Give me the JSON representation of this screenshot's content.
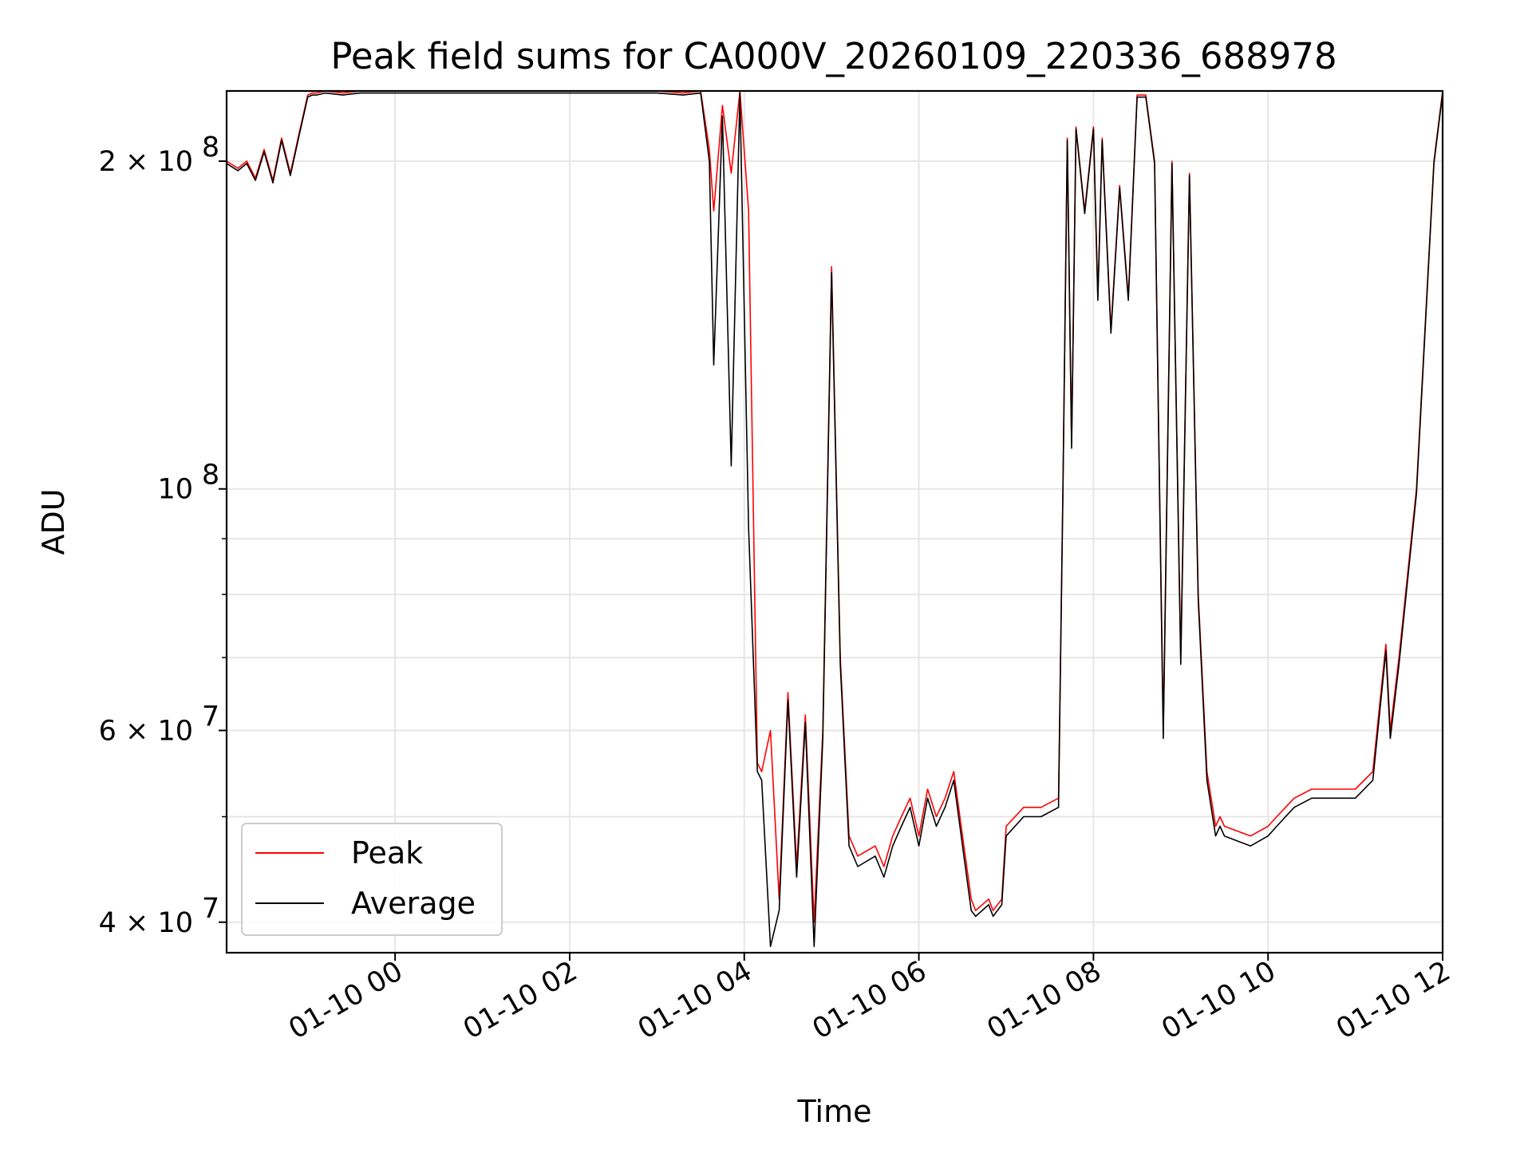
{
  "chart_data": {
    "type": "line",
    "title": "Peak field sums for CA000V_20260109_220336_688978",
    "xlabel": "Time",
    "ylabel": "ADU",
    "yscale": "log",
    "xlim_hours": [
      -1.93,
      12.0
    ],
    "ylim": [
      37500000,
      232000000
    ],
    "x_units": "hours since 2026-01-10 00:00",
    "x_ticks": [
      {
        "value": 0,
        "label": "01-10 00"
      },
      {
        "value": 2,
        "label": "01-10 02"
      },
      {
        "value": 4,
        "label": "01-10 04"
      },
      {
        "value": 6,
        "label": "01-10 06"
      },
      {
        "value": 8,
        "label": "01-10 08"
      },
      {
        "value": 10,
        "label": "01-10 10"
      },
      {
        "value": 12,
        "label": "01-10 12"
      }
    ],
    "y_ticks": [
      {
        "value": 200000000,
        "base": "2 × 10",
        "exp": "8"
      },
      {
        "value": 100000000,
        "base": "10",
        "exp": "8"
      },
      {
        "value": 60000000,
        "base": "6 × 10",
        "exp": "7"
      },
      {
        "value": 40000000,
        "base": "4 × 10",
        "exp": "7"
      }
    ],
    "y_minor_ticks": [
      50000000,
      70000000,
      80000000,
      90000000
    ],
    "legend": {
      "position": "lower-left",
      "entries": [
        {
          "label": "Peak",
          "color": "#ff0000"
        },
        {
          "label": "Average",
          "color": "#000000"
        }
      ]
    },
    "series": [
      {
        "name": "Peak",
        "color": "#ff0000",
        "x": [
          -1.93,
          -1.8,
          -1.7,
          -1.6,
          -1.5,
          -1.4,
          -1.3,
          -1.2,
          -1.1,
          -1.0,
          -0.95,
          -0.9,
          -0.8,
          -0.6,
          -0.4,
          0,
          1,
          2,
          3,
          3.3,
          3.5,
          3.6,
          3.65,
          3.75,
          3.85,
          3.95,
          4.05,
          4.15,
          4.2,
          4.3,
          4.4,
          4.5,
          4.6,
          4.7,
          4.8,
          4.9,
          5.0,
          5.1,
          5.2,
          5.3,
          5.5,
          5.6,
          5.7,
          5.8,
          5.9,
          6.0,
          6.1,
          6.2,
          6.3,
          6.4,
          6.5,
          6.6,
          6.65,
          6.8,
          6.85,
          6.95,
          7.0,
          7.2,
          7.4,
          7.6,
          7.65,
          7.7,
          7.75,
          7.8,
          7.9,
          8.0,
          8.05,
          8.1,
          8.2,
          8.3,
          8.4,
          8.5,
          8.6,
          8.7,
          8.8,
          8.9,
          9.0,
          9.1,
          9.2,
          9.3,
          9.4,
          9.45,
          9.5,
          9.8,
          10.0,
          10.1,
          10.3,
          10.5,
          10.8,
          11.0,
          11.2,
          11.35,
          11.4,
          11.5,
          11.7,
          11.9,
          12.0
        ],
        "y": [
          200000000,
          197000000,
          200000000,
          193000000,
          205000000,
          192000000,
          210000000,
          195000000,
          212000000,
          230000000,
          231000000,
          231000000,
          232000000,
          231000000,
          232000000,
          232000000,
          232000000,
          232000000,
          232000000,
          231000000,
          232000000,
          205000000,
          180000000,
          225000000,
          195000000,
          232000000,
          180000000,
          56000000,
          55000000,
          60000000,
          42000000,
          65000000,
          45000000,
          62000000,
          40000000,
          60000000,
          160000000,
          70000000,
          48000000,
          46000000,
          47000000,
          45000000,
          48000000,
          50000000,
          52000000,
          48000000,
          53000000,
          50000000,
          52000000,
          55000000,
          48000000,
          42000000,
          41000000,
          42000000,
          41000000,
          42000000,
          49000000,
          51000000,
          51000000,
          52000000,
          100000000,
          210000000,
          110000000,
          215000000,
          180000000,
          215000000,
          150000000,
          210000000,
          140000000,
          190000000,
          150000000,
          230000000,
          230000000,
          200000000,
          60000000,
          200000000,
          70000000,
          195000000,
          80000000,
          55000000,
          49000000,
          50000000,
          49000000,
          48000000,
          49000000,
          50000000,
          52000000,
          53000000,
          53000000,
          53000000,
          55000000,
          72000000,
          60000000,
          70000000,
          100000000,
          200000000,
          232000000
        ]
      },
      {
        "name": "Average",
        "color": "#000000",
        "x": [
          -1.93,
          -1.8,
          -1.7,
          -1.6,
          -1.5,
          -1.4,
          -1.3,
          -1.2,
          -1.1,
          -1.0,
          -0.95,
          -0.9,
          -0.8,
          -0.6,
          -0.4,
          0,
          1,
          2,
          3,
          3.3,
          3.5,
          3.6,
          3.65,
          3.75,
          3.85,
          3.95,
          4.05,
          4.15,
          4.2,
          4.3,
          4.4,
          4.5,
          4.6,
          4.7,
          4.8,
          4.9,
          5.0,
          5.1,
          5.2,
          5.3,
          5.5,
          5.6,
          5.7,
          5.8,
          5.9,
          6.0,
          6.1,
          6.2,
          6.3,
          6.4,
          6.5,
          6.6,
          6.65,
          6.8,
          6.85,
          6.95,
          7.0,
          7.2,
          7.4,
          7.6,
          7.65,
          7.7,
          7.75,
          7.8,
          7.9,
          8.0,
          8.05,
          8.1,
          8.2,
          8.3,
          8.4,
          8.5,
          8.6,
          8.7,
          8.8,
          8.9,
          9.0,
          9.1,
          9.2,
          9.3,
          9.4,
          9.45,
          9.5,
          9.8,
          10.0,
          10.1,
          10.3,
          10.5,
          10.8,
          11.0,
          11.2,
          11.35,
          11.4,
          11.5,
          11.7,
          11.9,
          12.0
        ],
        "y": [
          199000000,
          196000000,
          199000000,
          192000000,
          204000000,
          191000000,
          209000000,
          194000000,
          211000000,
          229000000,
          230000000,
          230000000,
          231000000,
          230000000,
          231000000,
          231000000,
          231000000,
          231000000,
          231000000,
          230000000,
          231000000,
          200000000,
          130000000,
          220000000,
          105000000,
          231000000,
          92000000,
          55000000,
          54000000,
          38000000,
          41000000,
          64000000,
          44000000,
          61000000,
          38000000,
          59000000,
          158000000,
          69000000,
          47000000,
          45000000,
          46000000,
          44000000,
          47000000,
          49000000,
          51000000,
          47000000,
          52000000,
          49000000,
          51000000,
          54000000,
          47000000,
          41000000,
          40500000,
          41500000,
          40500000,
          41500000,
          48000000,
          50000000,
          50000000,
          51000000,
          99000000,
          209000000,
          109000000,
          214000000,
          179000000,
          214000000,
          149000000,
          209000000,
          139000000,
          189000000,
          149000000,
          229000000,
          229000000,
          199000000,
          59000000,
          199000000,
          69000000,
          194000000,
          79000000,
          54000000,
          48000000,
          49000000,
          48000000,
          47000000,
          48000000,
          49000000,
          51000000,
          52000000,
          52000000,
          52000000,
          54000000,
          71000000,
          59000000,
          69000000,
          99000000,
          199000000,
          231000000
        ]
      }
    ]
  }
}
